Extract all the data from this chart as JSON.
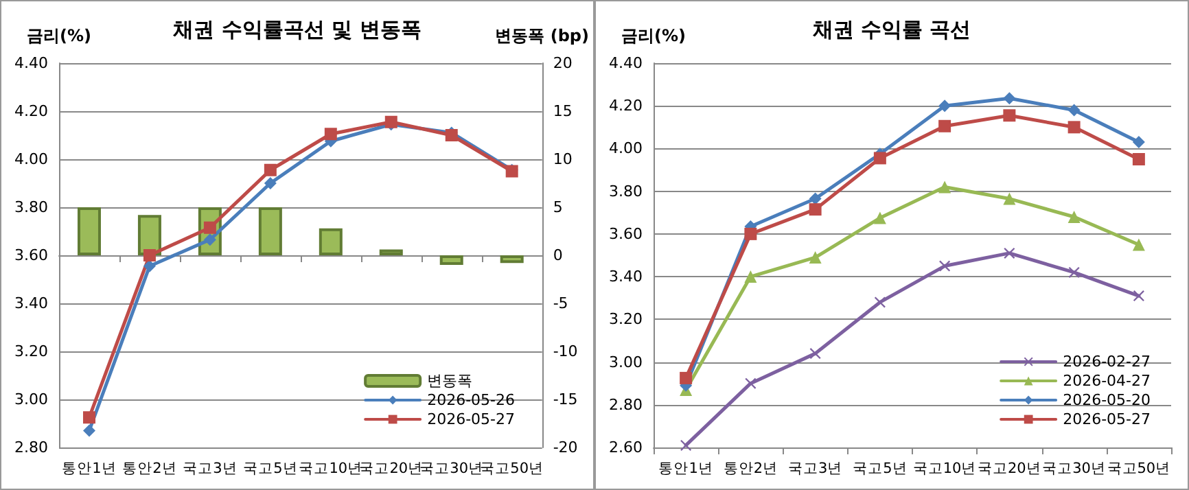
{
  "chart_data": [
    {
      "type": "line",
      "title": "채권 수익률곡선 및 변동폭",
      "ylabel": "금리(%)",
      "y2label": "변동폭 (bp)",
      "categories": [
        "통안1년",
        "통안2년",
        "국고3년",
        "국고5년",
        "국고10년",
        "국고20년",
        "국고30년",
        "국고50년"
      ],
      "series": [
        {
          "name": "변동폭",
          "type": "bar",
          "axis": "y2",
          "color": "#9bbb59",
          "values": [
            5,
            4.2,
            5,
            5,
            2.8,
            0.6,
            -1,
            -0.8
          ]
        },
        {
          "name": "2026-05-26",
          "color": "#4a7ebb",
          "marker": "diamond",
          "values": [
            2.87,
            3.555,
            3.665,
            3.9,
            4.075,
            4.145,
            4.11,
            3.955
          ]
        },
        {
          "name": "2026-05-27",
          "color": "#be4b48",
          "marker": "square",
          "values": [
            2.925,
            3.6,
            3.715,
            3.955,
            4.105,
            4.155,
            4.1,
            3.95
          ]
        }
      ],
      "ylim": [
        2.8,
        4.4
      ],
      "yticks": [
        {
          "value": 2.8,
          "label": "2.80"
        },
        {
          "value": 3.0,
          "label": "3.00"
        },
        {
          "value": 3.2,
          "label": "3.20"
        },
        {
          "value": 3.4,
          "label": "3.40"
        },
        {
          "value": 3.6,
          "label": "3.60"
        },
        {
          "value": 3.8,
          "label": "3.80"
        },
        {
          "value": 4.0,
          "label": "4.00"
        },
        {
          "value": 4.2,
          "label": "4.20"
        },
        {
          "value": 4.4,
          "label": "4.40"
        }
      ],
      "y2lim": [
        -20,
        20
      ],
      "y2ticks": [
        -20,
        -15,
        -10,
        -5,
        0,
        5,
        10,
        15,
        20
      ],
      "grid": "y",
      "legend": "bottom right"
    },
    {
      "type": "line",
      "title": "채권 수익률 곡선",
      "ylabel": "금리(%)",
      "categories": [
        "통안1년",
        "통안2년",
        "국고3년",
        "국고5년",
        "국고10년",
        "국고20년",
        "국고30년",
        "국고50년"
      ],
      "series": [
        {
          "name": "2026-02-27",
          "color": "#7d60a0",
          "marker": "cross",
          "values": [
            2.61,
            2.9,
            3.04,
            3.28,
            3.45,
            3.51,
            3.42,
            3.31
          ]
        },
        {
          "name": "2026-04-27",
          "color": "#98b954",
          "marker": "triangle",
          "values": [
            2.87,
            3.4,
            3.49,
            3.675,
            3.82,
            3.765,
            3.68,
            3.55
          ]
        },
        {
          "name": "2026-05-20",
          "color": "#4a7ebb",
          "marker": "diamond",
          "values": [
            2.89,
            3.635,
            3.765,
            3.975,
            4.2,
            4.235,
            4.18,
            4.03
          ]
        },
        {
          "name": "2026-05-27",
          "color": "#be4b48",
          "marker": "square",
          "values": [
            2.925,
            3.6,
            3.715,
            3.955,
            4.105,
            4.155,
            4.1,
            3.95
          ]
        }
      ],
      "ylim": [
        2.6,
        4.4
      ],
      "yticks": [
        {
          "value": 2.6,
          "label": "2.60"
        },
        {
          "value": 2.8,
          "label": "2.80"
        },
        {
          "value": 3.0,
          "label": "3.00"
        },
        {
          "value": 3.2,
          "label": "3.20"
        },
        {
          "value": 3.4,
          "label": "3.40"
        },
        {
          "value": 3.6,
          "label": "3.60"
        },
        {
          "value": 3.8,
          "label": "3.80"
        },
        {
          "value": 4.0,
          "label": "4.00"
        },
        {
          "value": 4.2,
          "label": "4.20"
        },
        {
          "value": 4.4,
          "label": "4.40"
        }
      ],
      "grid": "y",
      "legend": "bottom right"
    }
  ]
}
